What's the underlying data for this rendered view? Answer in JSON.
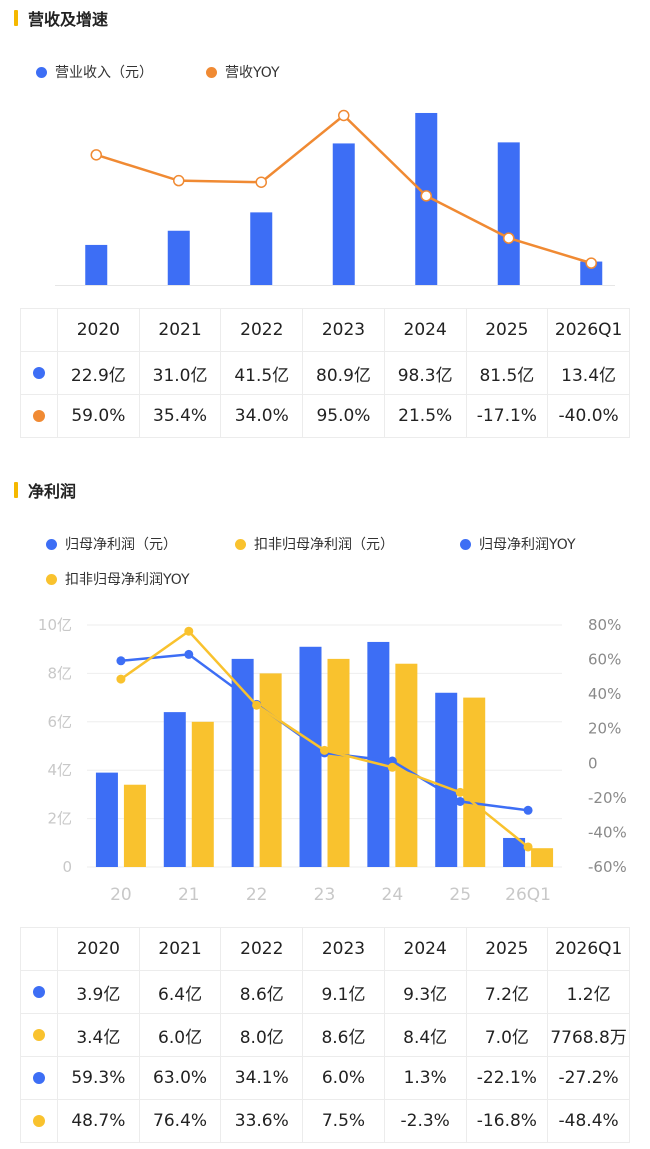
{
  "colors": {
    "blue": "#3d6ef5",
    "orange": "#f08a33",
    "yellow": "#f9c22e",
    "accent_bar": "#f5b800",
    "axis_text": "#c8c8c8",
    "grid": "#eeeeee"
  },
  "section1": {
    "title": "营收及增速",
    "legend": [
      {
        "label": "营业收入（元）",
        "color": "#3d6ef5"
      },
      {
        "label": "营收YOY",
        "color": "#f08a33"
      }
    ],
    "table": {
      "headers": [
        "2020",
        "2021",
        "2022",
        "2023",
        "2024",
        "2025",
        "2026Q1"
      ],
      "rows": [
        {
          "color": "#3d6ef5",
          "cells": [
            "22.9亿",
            "31.0亿",
            "41.5亿",
            "80.9亿",
            "98.3亿",
            "81.5亿",
            "13.4亿"
          ]
        },
        {
          "color": "#f08a33",
          "cells": [
            "59.0%",
            "35.4%",
            "34.0%",
            "95.0%",
            "21.5%",
            "-17.1%",
            "-40.0%"
          ]
        }
      ]
    }
  },
  "section2": {
    "title": "净利润",
    "legend": [
      {
        "label": "归母净利润（元）",
        "color": "#3d6ef5"
      },
      {
        "label": "扣非归母净利润（元）",
        "color": "#f9c22e"
      },
      {
        "label": "归母净利润YOY",
        "color": "#3d6ef5"
      },
      {
        "label": "扣非归母净利润YOY",
        "color": "#f9c22e"
      }
    ],
    "table": {
      "headers": [
        "2020",
        "2021",
        "2022",
        "2023",
        "2024",
        "2025",
        "2026Q1"
      ],
      "rows": [
        {
          "color": "#3d6ef5",
          "cells": [
            "3.9亿",
            "6.4亿",
            "8.6亿",
            "9.1亿",
            "9.3亿",
            "7.2亿",
            "1.2亿"
          ]
        },
        {
          "color": "#f9c22e",
          "cells": [
            "3.4亿",
            "6.0亿",
            "8.0亿",
            "8.6亿",
            "8.4亿",
            "7.0亿",
            "7768.8万"
          ]
        },
        {
          "color": "#3d6ef5",
          "cells": [
            "59.3%",
            "63.0%",
            "34.1%",
            "6.0%",
            "1.3%",
            "-22.1%",
            "-27.2%"
          ]
        },
        {
          "color": "#f9c22e",
          "cells": [
            "48.7%",
            "76.4%",
            "33.6%",
            "7.5%",
            "-2.3%",
            "-16.8%",
            "-48.4%"
          ]
        }
      ]
    }
  },
  "chart_data": [
    {
      "type": "bar",
      "title": "营收及增速",
      "categories": [
        "2020",
        "2021",
        "2022",
        "2023",
        "2024",
        "2025",
        "2026Q1"
      ],
      "series": [
        {
          "name": "营业收入（元）",
          "kind": "bar",
          "axis": "left",
          "unit": "亿",
          "color": "#3d6ef5",
          "values": [
            22.9,
            31.0,
            41.5,
            80.9,
            98.3,
            81.5,
            13.4
          ]
        },
        {
          "name": "营收YOY",
          "kind": "line",
          "axis": "right",
          "unit": "%",
          "color": "#f08a33",
          "values": [
            59.0,
            35.4,
            34.0,
            95.0,
            21.5,
            -17.1,
            -40.0
          ]
        }
      ],
      "ylim_left": [
        0,
        100
      ],
      "ylim_right": [
        -60,
        100
      ],
      "axes_shown": false,
      "grid": false,
      "legend_position": "top-left"
    },
    {
      "type": "bar",
      "title": "净利润",
      "categories": [
        "20",
        "21",
        "22",
        "23",
        "24",
        "25",
        "26Q1"
      ],
      "series": [
        {
          "name": "归母净利润（元）",
          "kind": "bar",
          "axis": "left",
          "unit": "亿",
          "color": "#3d6ef5",
          "values": [
            3.9,
            6.4,
            8.6,
            9.1,
            9.3,
            7.2,
            1.2
          ]
        },
        {
          "name": "扣非归母净利润（元）",
          "kind": "bar",
          "axis": "left",
          "unit": "亿",
          "color": "#f9c22e",
          "values": [
            3.4,
            6.0,
            8.0,
            8.6,
            8.4,
            7.0,
            0.777
          ]
        },
        {
          "name": "归母净利润YOY",
          "kind": "line",
          "axis": "right",
          "unit": "%",
          "color": "#3d6ef5",
          "values": [
            59.3,
            63.0,
            34.1,
            6.0,
            1.3,
            -22.1,
            -27.2
          ]
        },
        {
          "name": "扣非归母净利润YOY",
          "kind": "line",
          "axis": "right",
          "unit": "%",
          "color": "#f9c22e",
          "values": [
            48.7,
            76.4,
            33.6,
            7.5,
            -2.3,
            -16.8,
            -48.4
          ]
        }
      ],
      "ylim_left": [
        0,
        10
      ],
      "ylim_right": [
        -60,
        80
      ],
      "yticks_left": [
        {
          "value": 0,
          "label": "0"
        },
        {
          "value": 2,
          "label": "2亿"
        },
        {
          "value": 4,
          "label": "4亿"
        },
        {
          "value": 6,
          "label": "6亿"
        },
        {
          "value": 8,
          "label": "8亿"
        },
        {
          "value": 10,
          "label": "10亿"
        }
      ],
      "yticks_right": [
        {
          "value": 80,
          "label": "80%"
        },
        {
          "value": 60,
          "label": "60%"
        },
        {
          "value": 40,
          "label": "40%"
        },
        {
          "value": 20,
          "label": "20%"
        },
        {
          "value": 0,
          "label": "0"
        },
        {
          "value": -20,
          "label": "-20%"
        },
        {
          "value": -40,
          "label": "-40%"
        },
        {
          "value": -60,
          "label": "-60%"
        }
      ],
      "grid": true,
      "legend_position": "top-left"
    }
  ]
}
